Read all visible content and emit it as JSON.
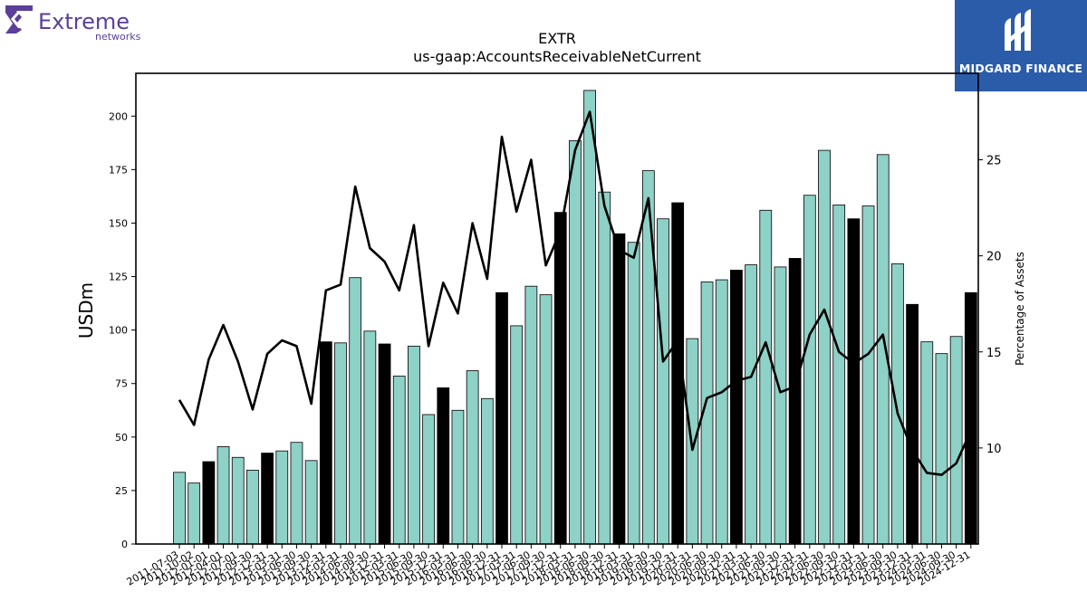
{
  "logos": {
    "left": {
      "name": "Extreme",
      "sub": "networks",
      "icon": "extreme-networks-logo"
    },
    "right": {
      "name": "MIDGARD FINANCE",
      "icon": "midgard-finance-logo"
    }
  },
  "colors": {
    "bar_fill": "#8ed1c6",
    "bar_highlight": "#000000",
    "line": "#000000",
    "brand_left": "#5b3f98",
    "brand_right": "#2a5caa"
  },
  "chart_data": {
    "type": "bar",
    "title": "EXTR",
    "subtitle": "us-gaap:AccountsReceivableNetCurrent",
    "ylabel": "USDm",
    "y2label": "Percentage of Assets",
    "ylim": [
      0,
      220
    ],
    "y2lim": [
      5,
      29.5
    ],
    "yticks": [
      0,
      25,
      50,
      75,
      100,
      125,
      150,
      175,
      200
    ],
    "y2ticks": [
      10,
      15,
      20,
      25
    ],
    "grid": false,
    "categories": [
      "2011-07-03",
      "2011-10-02",
      "2012-01-01",
      "2012-04-01",
      "2012-07-01",
      "2012-09-30",
      "2012-12-31",
      "2013-03-31",
      "2013-06-30",
      "2013-09-30",
      "2013-12-31",
      "2014-03-31",
      "2014-06-30",
      "2014-09-30",
      "2014-12-31",
      "2015-03-31",
      "2015-06-30",
      "2015-09-30",
      "2015-12-31",
      "2016-03-31",
      "2016-06-30",
      "2016-09-30",
      "2016-12-31",
      "2017-03-31",
      "2017-06-30",
      "2017-09-30",
      "2017-12-31",
      "2018-03-31",
      "2018-06-30",
      "2018-09-30",
      "2018-12-31",
      "2019-03-31",
      "2019-06-30",
      "2019-09-30",
      "2019-12-31",
      "2020-03-31",
      "2020-06-30",
      "2020-09-30",
      "2020-12-31",
      "2021-03-31",
      "2021-06-30",
      "2021-09-30",
      "2021-12-31",
      "2022-03-31",
      "2022-06-30",
      "2022-09-30",
      "2022-12-31",
      "2023-03-31",
      "2023-06-30",
      "2023-09-30",
      "2023-12-31",
      "2024-03-31",
      "2024-06-30",
      "2024-09-30",
      "2024-12-31"
    ],
    "series": [
      {
        "kind": "bar",
        "axis": "left",
        "values": [
          33.5,
          28.5,
          38.5,
          45.5,
          40.5,
          34.5,
          42.5,
          43.5,
          47.5,
          39,
          94.5,
          94,
          124.5,
          99.5,
          93.5,
          78.5,
          92.5,
          60.5,
          73,
          62.5,
          81,
          68,
          117.5,
          102,
          120.5,
          116.5,
          155,
          188.5,
          212,
          164.5,
          145,
          141,
          174.5,
          152,
          159.5,
          96,
          122.5,
          123.5,
          128,
          130.5,
          156,
          129.5,
          133.5,
          163,
          184,
          158.5,
          152,
          158,
          182,
          131,
          112,
          94.5,
          89,
          97,
          117.5
        ],
        "highlight": [
          false,
          false,
          true,
          false,
          false,
          false,
          true,
          false,
          false,
          false,
          true,
          false,
          false,
          false,
          true,
          false,
          false,
          false,
          true,
          false,
          false,
          false,
          true,
          false,
          false,
          false,
          true,
          false,
          false,
          false,
          true,
          false,
          false,
          false,
          true,
          false,
          false,
          false,
          true,
          false,
          false,
          false,
          true,
          false,
          false,
          false,
          true,
          false,
          false,
          false,
          true,
          false,
          false,
          false,
          true
        ]
      },
      {
        "kind": "line",
        "axis": "right",
        "values": [
          12.5,
          11.2,
          14.6,
          16.4,
          14.5,
          12,
          14.9,
          15.6,
          15.3,
          12.3,
          18.2,
          18.5,
          23.6,
          20.4,
          19.7,
          18.2,
          21.6,
          15.3,
          18.6,
          17,
          21.7,
          18.8,
          26.2,
          22.3,
          25,
          19.5,
          21.3,
          25.5,
          27.5,
          22.6,
          20.3,
          19.9,
          23,
          14.5,
          15.6,
          9.9,
          12.6,
          12.9,
          13.5,
          13.7,
          15.5,
          12.9,
          13.2,
          15.9,
          17.2,
          15,
          14.4,
          14.9,
          15.9,
          11.8,
          9.9,
          8.7,
          8.6,
          9.2,
          10.9
        ]
      }
    ]
  }
}
